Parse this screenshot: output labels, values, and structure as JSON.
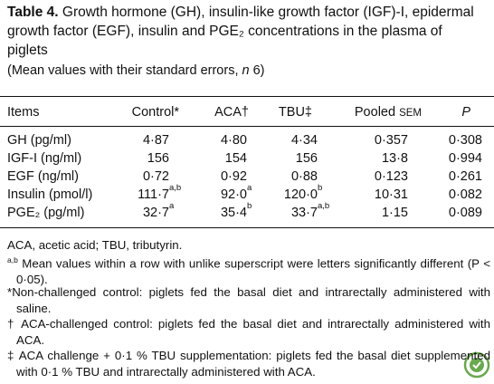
{
  "title": {
    "label": "Table 4.",
    "text": "Growth hormone (GH), insulin-like growth factor (IGF)-I, epidermal growth factor (EGF), insulin and PGE₂ concentrations in the plasma of piglets"
  },
  "subtitle": [
    "(Mean values with their standard errors, ",
    "n",
    " 6)"
  ],
  "table": {
    "header": [
      "Items",
      "Control*",
      "ACA†",
      "TBU‡",
      {
        "text": "Pooled",
        "smallcaps": "SEM"
      },
      "P"
    ],
    "rows": [
      {
        "item": "GH (pg/ml)",
        "cells": [
          {
            "v": "4·87"
          },
          {
            "v": "4·80"
          },
          {
            "v": "4·34"
          },
          {
            "v": "0·357"
          },
          {
            "v": "0·308"
          }
        ]
      },
      {
        "item": "IGF-I (ng/ml)",
        "cells": [
          {
            "v": "156"
          },
          {
            "v": "154"
          },
          {
            "v": "156"
          },
          {
            "v": "13·8"
          },
          {
            "v": "0·994"
          }
        ]
      },
      {
        "item": "EGF (ng/ml)",
        "cells": [
          {
            "v": "0·72"
          },
          {
            "v": "0·92"
          },
          {
            "v": "0·88"
          },
          {
            "v": "0·123"
          },
          {
            "v": "0·261"
          }
        ]
      },
      {
        "item": "Insulin (pmol/l)",
        "cells": [
          {
            "v": "111·7",
            "sup": "a,b"
          },
          {
            "v": "92·0",
            "sup": "a"
          },
          {
            "v": "120·0",
            "sup": "b"
          },
          {
            "v": "10·31"
          },
          {
            "v": "0·082"
          }
        ]
      },
      {
        "item": "PGE₂ (pg/ml)",
        "cells": [
          {
            "v": "32·7",
            "sup": "a"
          },
          {
            "v": "35·4",
            "sup": "b"
          },
          {
            "v": "33·7",
            "sup": "a,b"
          },
          {
            "v": "1·15"
          },
          {
            "v": "0·089"
          }
        ]
      }
    ]
  },
  "footnotes": [
    {
      "text": "ACA, acetic acid; TBU, tributyrin."
    },
    {
      "mark": "a,b",
      "text": " Mean values within a row with unlike superscript were letters significantly different (P < 0·05)."
    },
    {
      "mark": "*",
      "text": "Non-challenged control: piglets fed the basal diet and intrarectally administered with saline."
    },
    {
      "mark": "†",
      "text": " ACA-challenged control: piglets fed the basal diet and intrarectally administered with ACA."
    },
    {
      "mark": "‡",
      "text": " ACA challenge + 0·1 % TBU supplementation: piglets fed the basal diet supplemented with 0·1 % TBU and intrarectally administered with ACA."
    }
  ]
}
